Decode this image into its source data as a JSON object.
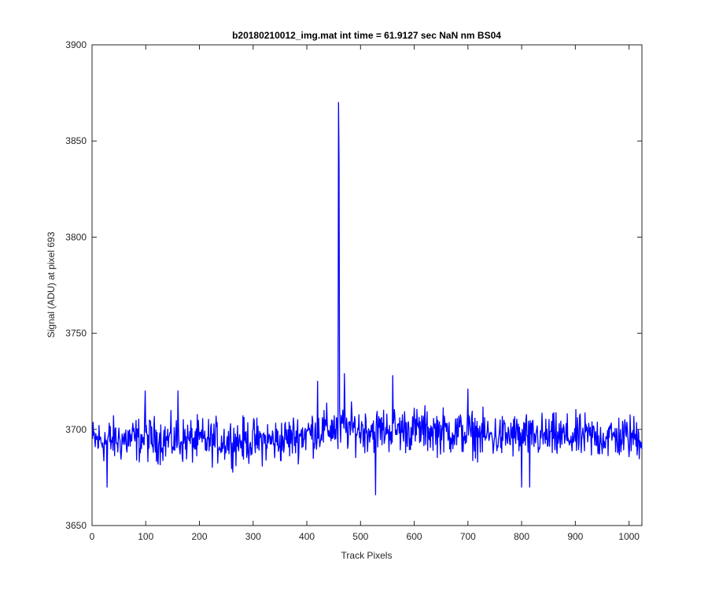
{
  "chart_data": {
    "type": "line",
    "title": "b20180210012_img.mat int time = 61.9127 sec  NaN nm BS04",
    "xlabel": "Track Pixels",
    "ylabel": "Signal (ADU) at pixel 693",
    "xlim": [
      0,
      1024
    ],
    "ylim": [
      3650,
      3900
    ],
    "xticks": [
      0,
      100,
      200,
      300,
      400,
      500,
      600,
      700,
      800,
      900,
      1000
    ],
    "yticks": [
      3650,
      3700,
      3750,
      3800,
      3850,
      3900
    ],
    "grid": false,
    "legend": "none",
    "series": [
      {
        "color": "#0000ff",
        "baseline_profile": {
          "x": [
            0,
            100,
            200,
            300,
            350,
            400,
            450,
            500,
            550,
            600,
            650,
            700,
            750,
            800,
            850,
            900,
            1024
          ],
          "mean": [
            3694,
            3695,
            3694,
            3694,
            3694,
            3698,
            3701,
            3700,
            3700,
            3700,
            3699,
            3698,
            3696,
            3697,
            3696,
            3696,
            3696
          ],
          "noise_amplitude": 12
        },
        "notable_points": [
          {
            "x": 459,
            "y": 3870
          },
          {
            "x": 460,
            "y": 3838
          },
          {
            "x": 458,
            "y": 3690
          },
          {
            "x": 528,
            "y": 3666
          },
          {
            "x": 420,
            "y": 3725
          },
          {
            "x": 470,
            "y": 3729
          },
          {
            "x": 560,
            "y": 3728
          },
          {
            "x": 700,
            "y": 3721
          },
          {
            "x": 99,
            "y": 3720
          },
          {
            "x": 160,
            "y": 3720
          },
          {
            "x": 28,
            "y": 3670
          },
          {
            "x": 800,
            "y": 3670
          },
          {
            "x": 815,
            "y": 3670
          }
        ]
      }
    ]
  }
}
